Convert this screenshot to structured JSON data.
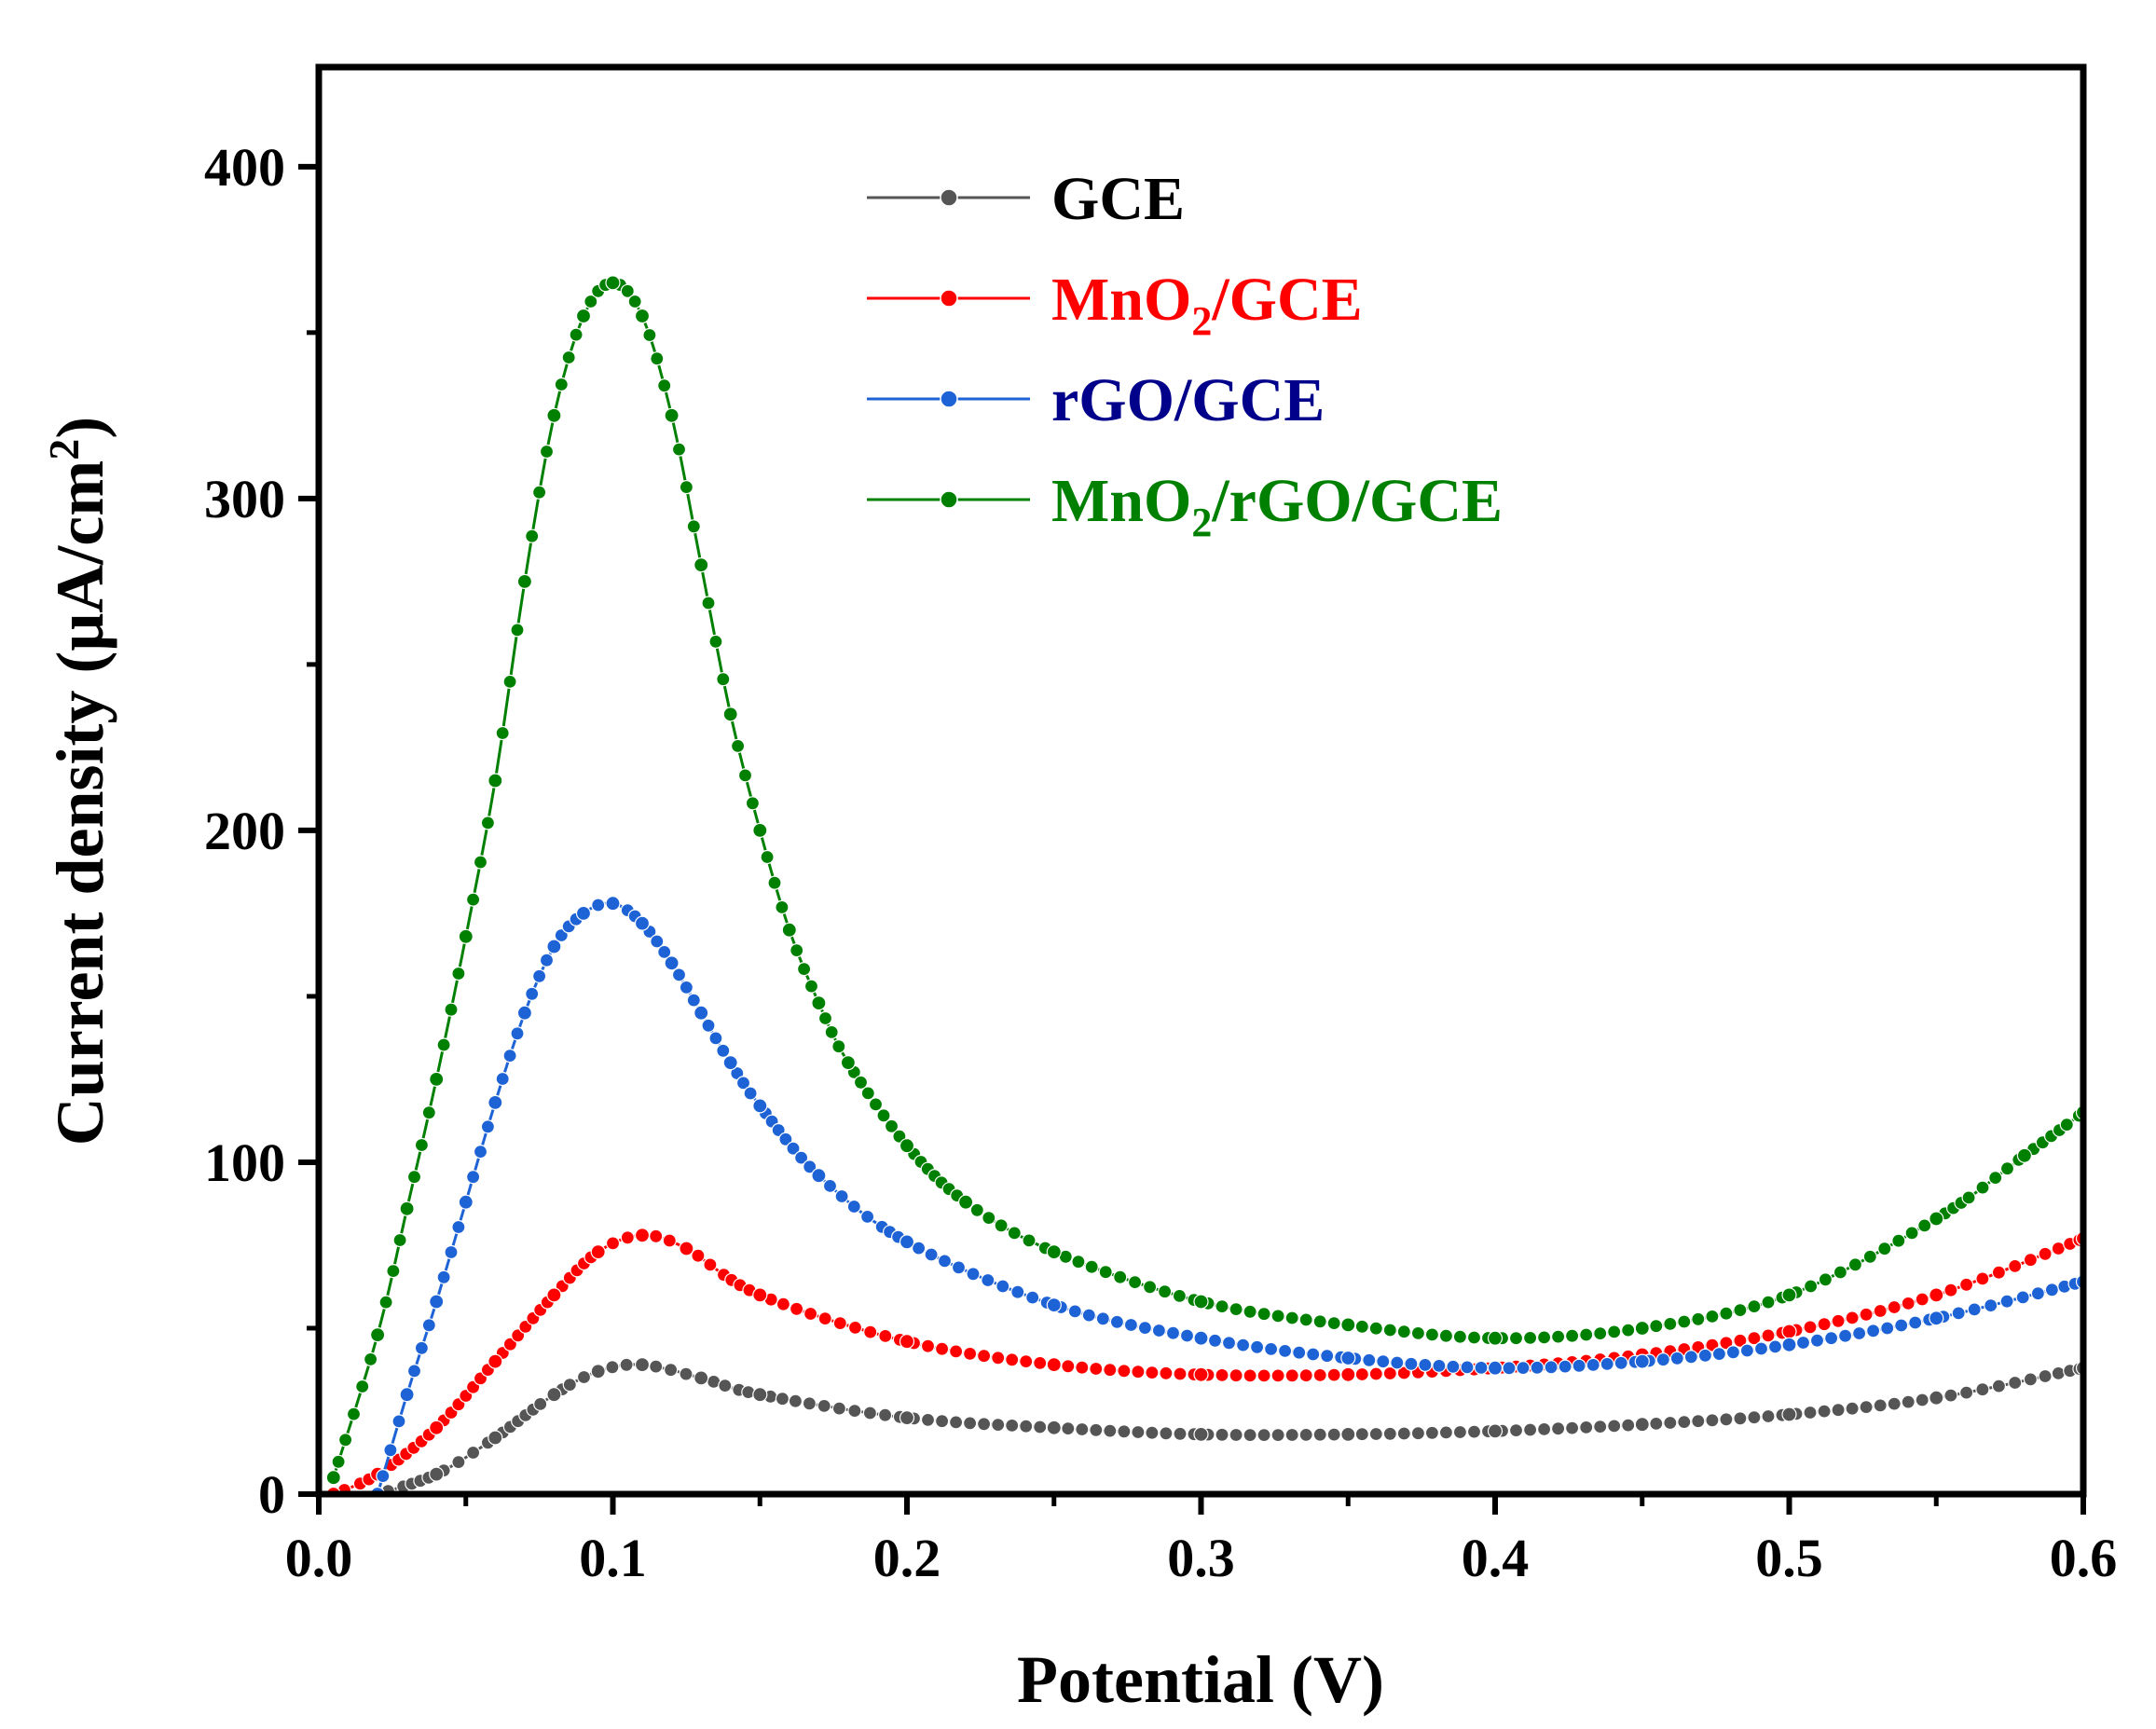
{
  "chart_data": {
    "type": "line",
    "title": "",
    "xlabel": "Potential (V)",
    "ylabel": "Current density (μA/cm²)",
    "xlim": [
      0.0,
      0.6
    ],
    "ylim": [
      0,
      430
    ],
    "xticks": [
      "0.0",
      "0.1",
      "0.2",
      "0.3",
      "0.4",
      "0.5",
      "0.6"
    ],
    "yticks": [
      "0",
      "100",
      "200",
      "300",
      "400"
    ],
    "grid": false,
    "legend_position": "top-center",
    "series": [
      {
        "name": "GCE",
        "color": "#555555",
        "x": [
          0.02,
          0.04,
          0.06,
          0.08,
          0.095,
          0.11,
          0.13,
          0.15,
          0.2,
          0.25,
          0.3,
          0.35,
          0.4,
          0.45,
          0.5,
          0.55,
          0.6
        ],
        "y": [
          0,
          6,
          17,
          30,
          37,
          39,
          35,
          30,
          23,
          20,
          18,
          18,
          19,
          21,
          24,
          29,
          38
        ]
      },
      {
        "name": "MnO₂/GCE",
        "color": "#ff0000",
        "x": [
          0.005,
          0.02,
          0.04,
          0.06,
          0.08,
          0.095,
          0.11,
          0.125,
          0.15,
          0.2,
          0.25,
          0.3,
          0.35,
          0.4,
          0.45,
          0.5,
          0.55,
          0.6
        ],
        "y": [
          0,
          6,
          20,
          40,
          60,
          73,
          78,
          74,
          60,
          46,
          39,
          36,
          36,
          38,
          42,
          49,
          60,
          77
        ]
      },
      {
        "name": "rGO/GCE",
        "color": "#1e63d6",
        "x": [
          0.02,
          0.03,
          0.04,
          0.05,
          0.06,
          0.07,
          0.08,
          0.09,
          0.1,
          0.11,
          0.12,
          0.13,
          0.14,
          0.15,
          0.17,
          0.2,
          0.25,
          0.3,
          0.35,
          0.4,
          0.45,
          0.5,
          0.55,
          0.6
        ],
        "y": [
          0,
          30,
          58,
          88,
          118,
          145,
          165,
          175,
          178,
          172,
          160,
          145,
          130,
          117,
          96,
          76,
          57,
          47,
          41,
          38,
          40,
          45,
          53,
          64
        ]
      },
      {
        "name": "MnO₂/rGO/GCE",
        "color": "#008000",
        "x": [
          0.005,
          0.02,
          0.03,
          0.04,
          0.05,
          0.06,
          0.07,
          0.08,
          0.09,
          0.1,
          0.11,
          0.12,
          0.13,
          0.14,
          0.15,
          0.16,
          0.17,
          0.18,
          0.2,
          0.22,
          0.25,
          0.3,
          0.35,
          0.4,
          0.45,
          0.5,
          0.55,
          0.58,
          0.6
        ],
        "y": [
          5,
          48,
          86,
          125,
          168,
          215,
          275,
          325,
          355,
          365,
          355,
          325,
          280,
          235,
          200,
          170,
          148,
          130,
          105,
          88,
          73,
          58,
          51,
          47,
          50,
          60,
          83,
          102,
          115
        ]
      }
    ]
  }
}
